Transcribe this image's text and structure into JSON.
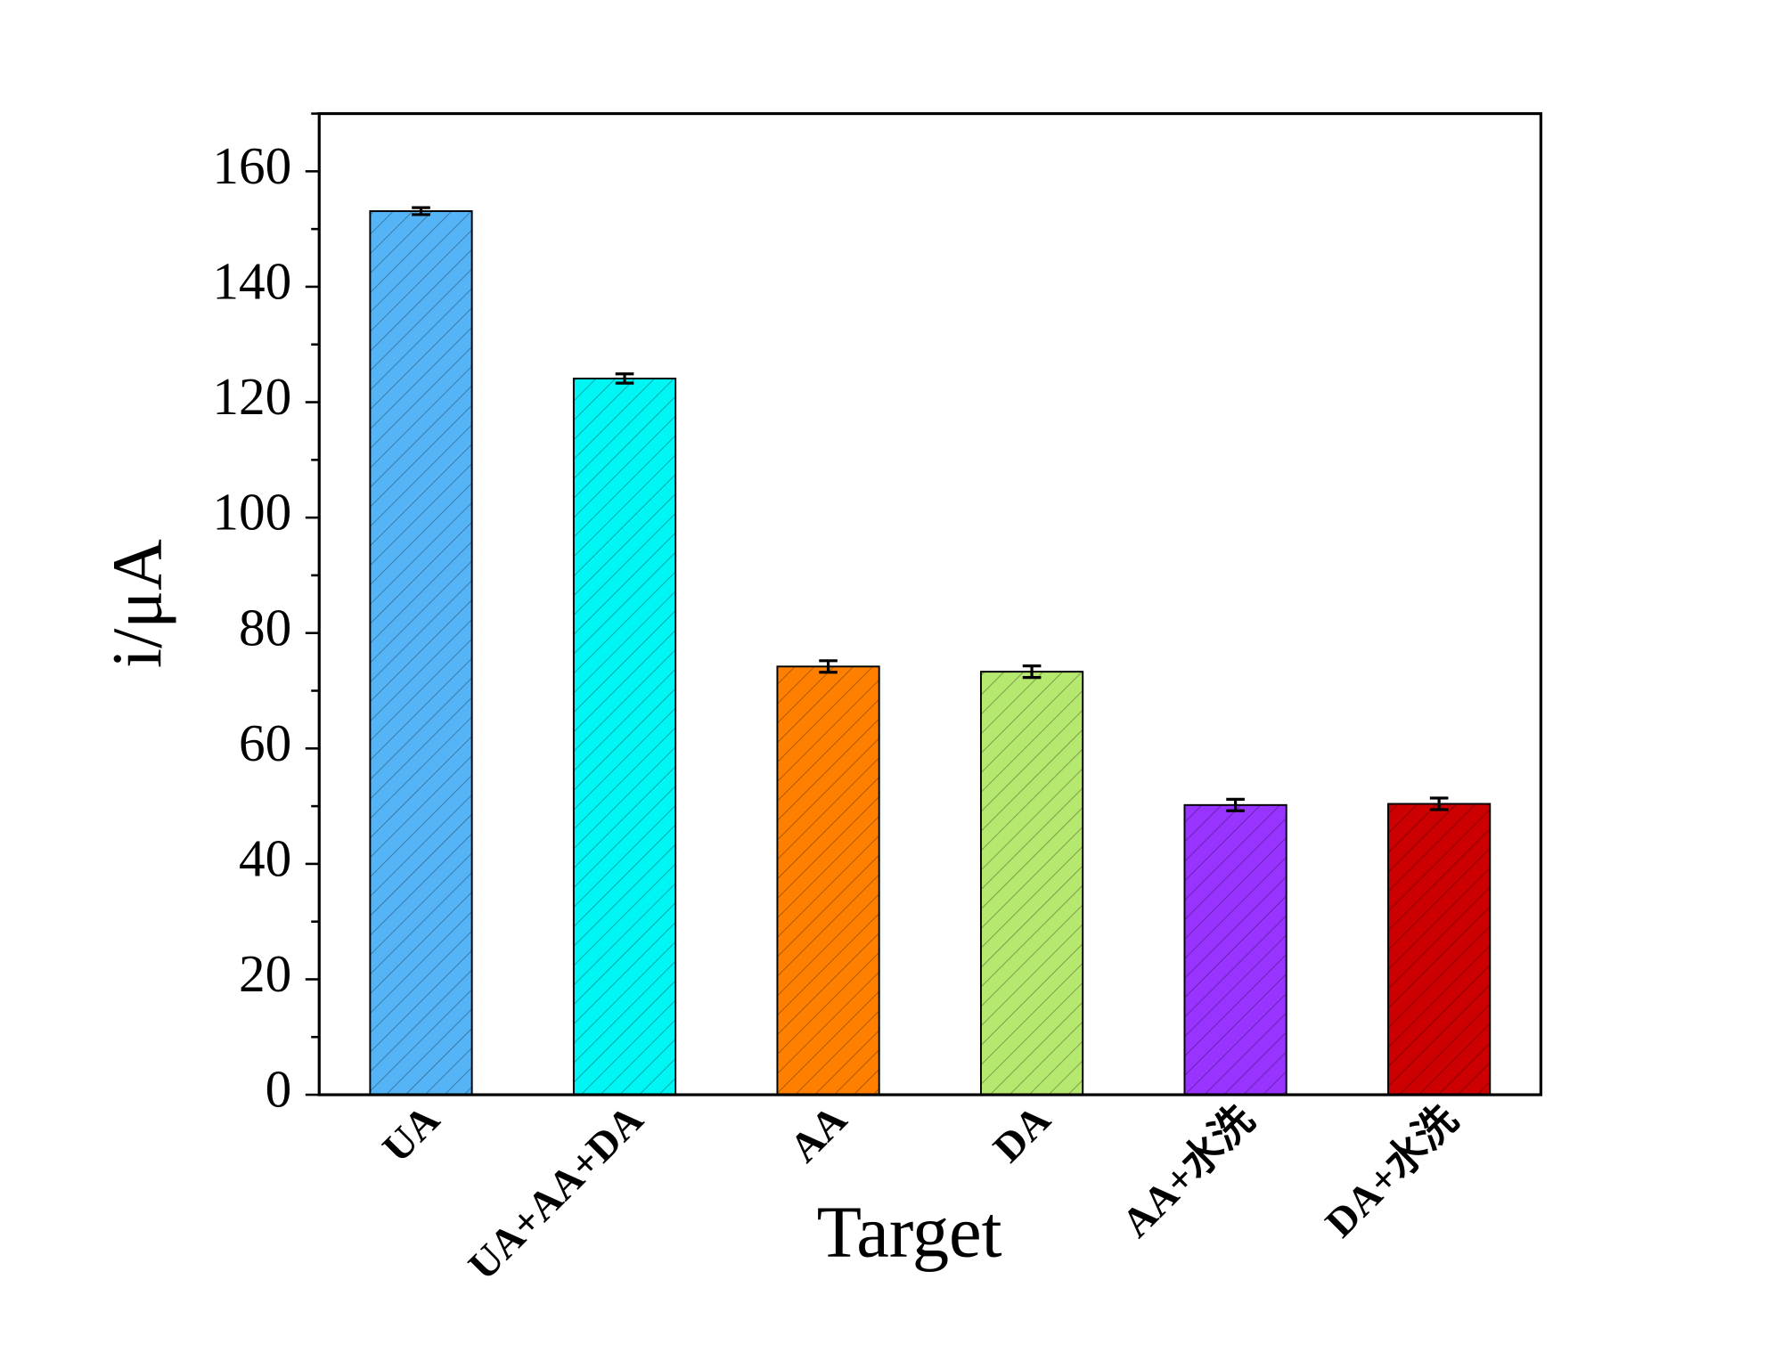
{
  "chart_data": {
    "type": "bar",
    "xlabel": "Target",
    "ylabel": "i/μA",
    "categories": [
      "UA",
      "UA+AA+DA",
      "AA",
      "DA",
      "AA+水洗",
      "DA+水洗"
    ],
    "values": [
      153.1,
      124.1,
      74.2,
      73.3,
      50.2,
      50.4
    ],
    "errors": [
      0.6,
      0.8,
      1.0,
      1.0,
      1.0,
      1.0
    ],
    "colors": [
      "#55b4f5",
      "#00f5f5",
      "#ff8000",
      "#b5e86e",
      "#9933ff",
      "#cc0000"
    ],
    "ylim": [
      0,
      170
    ],
    "yticks": [
      0,
      20,
      40,
      60,
      80,
      100,
      120,
      140,
      160
    ],
    "yminorticks": [
      10,
      30,
      50,
      70,
      90,
      110,
      130,
      150,
      170
    ]
  }
}
